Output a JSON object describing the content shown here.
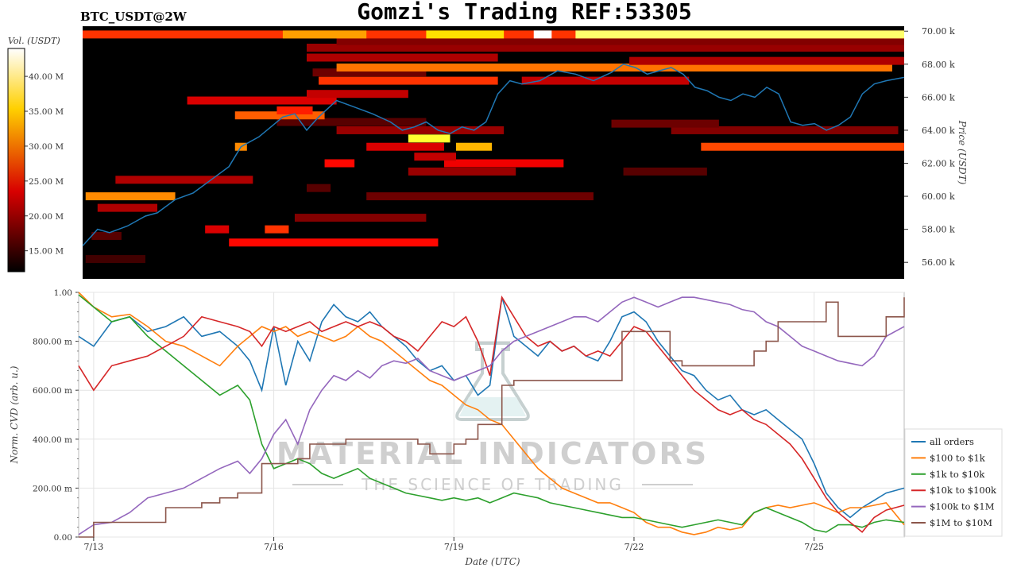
{
  "header": {
    "symbol": "BTC_USDT@2W",
    "title": "Gomzi's Trading REF:53305"
  },
  "watermark": {
    "line1": "MATERIAL INDICATORS",
    "line2": "THE SCIENCE OF TRADING"
  },
  "chart_data": [
    {
      "type": "heatmap",
      "title": "",
      "colorbar": {
        "label": "Vol. (USDT)",
        "range": [
          12000000,
          44000000
        ],
        "ticks": [
          "15.00 M",
          "20.00 M",
          "25.00 M",
          "30.00 M",
          "35.00 M",
          "40.00 M"
        ],
        "tick_values": [
          15000000,
          20000000,
          25000000,
          30000000,
          35000000,
          40000000
        ],
        "colormap": "hot"
      },
      "ylabel": "Price (USDT)",
      "ylim": [
        55000,
        70300
      ],
      "y_ticks": [
        "56.00 k",
        "58.00 k",
        "60.00 k",
        "62.00 k",
        "64.00 k",
        "66.00 k",
        "68.00 k",
        "70.00 k"
      ],
      "y_tick_values": [
        56000,
        58000,
        60000,
        62000,
        64000,
        66000,
        68000,
        70000
      ],
      "xlim": [
        12.75,
        26.5
      ],
      "volume_bands": [
        {
          "price": 56200,
          "x0": 12.8,
          "x1": 13.8,
          "vol": 15000000
        },
        {
          "price": 57600,
          "x0": 12.9,
          "x1": 13.4,
          "vol": 16000000
        },
        {
          "price": 57200,
          "x0": 15.2,
          "x1": 18.7,
          "vol": 24000000
        },
        {
          "price": 58000,
          "x0": 14.8,
          "x1": 15.2,
          "vol": 22000000
        },
        {
          "price": 58000,
          "x0": 15.8,
          "x1": 16.2,
          "vol": 26000000
        },
        {
          "price": 58700,
          "x0": 16.3,
          "x1": 18.5,
          "vol": 18000000
        },
        {
          "price": 59300,
          "x0": 13.0,
          "x1": 14.0,
          "vol": 20000000
        },
        {
          "price": 60000,
          "x0": 12.8,
          "x1": 14.3,
          "vol": 30000000
        },
        {
          "price": 60000,
          "x0": 17.5,
          "x1": 21.3,
          "vol": 17000000
        },
        {
          "price": 60500,
          "x0": 16.5,
          "x1": 16.9,
          "vol": 16000000
        },
        {
          "price": 61000,
          "x0": 13.3,
          "x1": 15.6,
          "vol": 20000000
        },
        {
          "price": 61500,
          "x0": 18.2,
          "x1": 20.0,
          "vol": 19000000
        },
        {
          "price": 61500,
          "x0": 21.8,
          "x1": 23.2,
          "vol": 16000000
        },
        {
          "price": 62000,
          "x0": 16.8,
          "x1": 17.3,
          "vol": 24000000
        },
        {
          "price": 62000,
          "x0": 18.8,
          "x1": 20.8,
          "vol": 23000000
        },
        {
          "price": 62400,
          "x0": 18.3,
          "x1": 19.0,
          "vol": 21000000
        },
        {
          "price": 63000,
          "x0": 15.3,
          "x1": 15.5,
          "vol": 30000000
        },
        {
          "price": 63000,
          "x0": 19.0,
          "x1": 19.6,
          "vol": 32000000
        },
        {
          "price": 63000,
          "x0": 17.5,
          "x1": 18.8,
          "vol": 22000000
        },
        {
          "price": 63000,
          "x0": 23.1,
          "x1": 26.5,
          "vol": 27000000
        },
        {
          "price": 63500,
          "x0": 18.2,
          "x1": 18.9,
          "vol": 37000000
        },
        {
          "price": 64000,
          "x0": 17.0,
          "x1": 19.8,
          "vol": 19000000
        },
        {
          "price": 64000,
          "x0": 22.6,
          "x1": 26.4,
          "vol": 18000000
        },
        {
          "price": 64400,
          "x0": 21.6,
          "x1": 23.4,
          "vol": 17000000
        },
        {
          "price": 64500,
          "x0": 16.0,
          "x1": 18.5,
          "vol": 16000000
        },
        {
          "price": 64900,
          "x0": 15.3,
          "x1": 16.8,
          "vol": 28000000
        },
        {
          "price": 65200,
          "x0": 16.0,
          "x1": 16.6,
          "vol": 25000000
        },
        {
          "price": 65800,
          "x0": 14.5,
          "x1": 17.0,
          "vol": 22000000
        },
        {
          "price": 66200,
          "x0": 16.5,
          "x1": 18.2,
          "vol": 21000000
        },
        {
          "price": 67000,
          "x0": 16.7,
          "x1": 19.7,
          "vol": 26000000
        },
        {
          "price": 67000,
          "x0": 20.1,
          "x1": 22.9,
          "vol": 21000000
        },
        {
          "price": 67500,
          "x0": 16.6,
          "x1": 18.5,
          "vol": 17000000
        },
        {
          "price": 67800,
          "x0": 17.0,
          "x1": 26.3,
          "vol": 29000000
        },
        {
          "price": 68200,
          "x0": 21.9,
          "x1": 26.5,
          "vol": 20000000
        },
        {
          "price": 68400,
          "x0": 16.5,
          "x1": 19.7,
          "vol": 20000000
        },
        {
          "price": 69000,
          "x0": 16.5,
          "x1": 26.5,
          "vol": 19000000
        },
        {
          "price": 69400,
          "x0": 17.0,
          "x1": 26.5,
          "vol": 18000000
        },
        {
          "price": 69800,
          "x0": 12.75,
          "x1": 26.5,
          "vol": 26000000
        },
        {
          "price": 69800,
          "x0": 16.1,
          "x1": 17.5,
          "vol": 31000000
        },
        {
          "price": 69800,
          "x0": 18.5,
          "x1": 19.8,
          "vol": 34000000
        },
        {
          "price": 69800,
          "x0": 20.3,
          "x1": 20.6,
          "vol": 44000000
        },
        {
          "price": 69800,
          "x0": 21.0,
          "x1": 26.5,
          "vol": 39000000
        }
      ],
      "price_series": {
        "name": "",
        "color": "#1f77b4",
        "x": [
          12.75,
          12.9,
          13.0,
          13.2,
          13.5,
          13.8,
          14.0,
          14.3,
          14.6,
          14.9,
          15.2,
          15.4,
          15.7,
          15.9,
          16.1,
          16.3,
          16.5,
          16.7,
          17.0,
          17.3,
          17.6,
          17.9,
          18.1,
          18.3,
          18.5,
          18.7,
          18.9,
          19.1,
          19.3,
          19.5,
          19.7,
          19.9,
          20.1,
          20.4,
          20.7,
          21.0,
          21.3,
          21.6,
          21.8,
          22.0,
          22.2,
          22.4,
          22.6,
          22.8,
          23.0,
          23.2,
          23.4,
          23.6,
          23.8,
          24.0,
          24.2,
          24.4,
          24.6,
          24.8,
          25.0,
          25.2,
          25.4,
          25.6,
          25.8,
          26.0,
          26.2,
          26.5
        ],
        "values": [
          57000,
          57600,
          58000,
          57800,
          58200,
          58800,
          59000,
          59800,
          60200,
          61000,
          61800,
          63000,
          63600,
          64200,
          64800,
          65000,
          64000,
          64800,
          65800,
          65400,
          65000,
          64500,
          64000,
          64200,
          64500,
          64000,
          63800,
          64200,
          64000,
          64500,
          66200,
          67000,
          66800,
          67000,
          67600,
          67400,
          67000,
          67500,
          68000,
          67800,
          67400,
          67600,
          67800,
          67400,
          66600,
          66400,
          66000,
          65800,
          66200,
          66000,
          66600,
          66200,
          64500,
          64300,
          64400,
          64000,
          64300,
          64800,
          66200,
          66800,
          67000,
          67200
        ]
      }
    },
    {
      "type": "line",
      "title": "",
      "xlabel": "Date (UTC)",
      "ylabel": "Norm. CVD (arb. u.)",
      "ylim": [
        0,
        1
      ],
      "y_ticks": [
        "0.00",
        "200.00 m",
        "400.00 m",
        "600.00 m",
        "800.00 m",
        "1.00"
      ],
      "y_tick_values": [
        0,
        0.2,
        0.4,
        0.6,
        0.8,
        1.0
      ],
      "xlim": [
        12.75,
        26.5
      ],
      "x_ticks": [
        "7/13",
        "7/16",
        "7/19",
        "7/22",
        "7/25"
      ],
      "x_tick_values": [
        13,
        16,
        19,
        22,
        25
      ],
      "grid": true,
      "legend_position": "bottom-right",
      "x": [
        12.75,
        13.0,
        13.3,
        13.6,
        13.9,
        14.2,
        14.5,
        14.8,
        15.1,
        15.4,
        15.6,
        15.8,
        16.0,
        16.2,
        16.4,
        16.6,
        16.8,
        17.0,
        17.2,
        17.4,
        17.6,
        17.8,
        18.0,
        18.2,
        18.4,
        18.6,
        18.8,
        19.0,
        19.2,
        19.4,
        19.6,
        19.8,
        20.0,
        20.2,
        20.4,
        20.6,
        20.8,
        21.0,
        21.2,
        21.4,
        21.6,
        21.8,
        22.0,
        22.2,
        22.4,
        22.6,
        22.8,
        23.0,
        23.2,
        23.4,
        23.6,
        23.8,
        24.0,
        24.2,
        24.4,
        24.6,
        24.8,
        25.0,
        25.2,
        25.4,
        25.6,
        25.8,
        26.0,
        26.2,
        26.5
      ],
      "series": [
        {
          "name": "all orders",
          "color": "#1f77b4",
          "values": [
            0.82,
            0.78,
            0.88,
            0.9,
            0.84,
            0.86,
            0.9,
            0.82,
            0.84,
            0.78,
            0.72,
            0.6,
            0.86,
            0.62,
            0.8,
            0.72,
            0.88,
            0.95,
            0.9,
            0.88,
            0.92,
            0.86,
            0.82,
            0.78,
            0.72,
            0.68,
            0.7,
            0.64,
            0.66,
            0.58,
            0.62,
            0.98,
            0.82,
            0.78,
            0.74,
            0.8,
            0.76,
            0.78,
            0.74,
            0.72,
            0.8,
            0.9,
            0.92,
            0.88,
            0.8,
            0.74,
            0.68,
            0.66,
            0.6,
            0.56,
            0.58,
            0.52,
            0.5,
            0.52,
            0.48,
            0.44,
            0.4,
            0.3,
            0.18,
            0.12,
            0.08,
            0.12,
            0.15,
            0.18,
            0.2
          ]
        },
        {
          "name": "$100 to $1k",
          "color": "#ff7f0e",
          "values": [
            1.0,
            0.94,
            0.9,
            0.91,
            0.86,
            0.8,
            0.78,
            0.74,
            0.7,
            0.78,
            0.82,
            0.86,
            0.84,
            0.86,
            0.82,
            0.84,
            0.82,
            0.8,
            0.82,
            0.86,
            0.82,
            0.8,
            0.76,
            0.72,
            0.68,
            0.64,
            0.62,
            0.58,
            0.54,
            0.52,
            0.48,
            0.46,
            0.4,
            0.34,
            0.28,
            0.24,
            0.2,
            0.18,
            0.16,
            0.14,
            0.14,
            0.12,
            0.1,
            0.06,
            0.04,
            0.04,
            0.02,
            0.01,
            0.02,
            0.04,
            0.03,
            0.04,
            0.1,
            0.12,
            0.13,
            0.12,
            0.13,
            0.14,
            0.12,
            0.1,
            0.12,
            0.12,
            0.13,
            0.14,
            0.05
          ]
        },
        {
          "name": "$1k to $10k",
          "color": "#2ca02c",
          "values": [
            0.99,
            0.94,
            0.88,
            0.9,
            0.82,
            0.76,
            0.7,
            0.64,
            0.58,
            0.62,
            0.56,
            0.38,
            0.28,
            0.3,
            0.32,
            0.3,
            0.26,
            0.24,
            0.26,
            0.28,
            0.24,
            0.22,
            0.2,
            0.18,
            0.17,
            0.16,
            0.15,
            0.16,
            0.15,
            0.16,
            0.14,
            0.16,
            0.18,
            0.17,
            0.16,
            0.14,
            0.13,
            0.12,
            0.11,
            0.1,
            0.09,
            0.08,
            0.08,
            0.07,
            0.06,
            0.05,
            0.04,
            0.05,
            0.06,
            0.07,
            0.06,
            0.05,
            0.1,
            0.12,
            0.1,
            0.08,
            0.06,
            0.03,
            0.02,
            0.05,
            0.05,
            0.04,
            0.06,
            0.07,
            0.06
          ]
        },
        {
          "name": "$10k to $100k",
          "color": "#d62728",
          "values": [
            0.7,
            0.6,
            0.7,
            0.72,
            0.74,
            0.78,
            0.82,
            0.9,
            0.88,
            0.86,
            0.84,
            0.78,
            0.86,
            0.84,
            0.86,
            0.88,
            0.84,
            0.86,
            0.88,
            0.86,
            0.88,
            0.86,
            0.82,
            0.8,
            0.76,
            0.82,
            0.88,
            0.86,
            0.9,
            0.8,
            0.66,
            0.98,
            0.9,
            0.82,
            0.78,
            0.8,
            0.76,
            0.78,
            0.74,
            0.76,
            0.74,
            0.8,
            0.86,
            0.84,
            0.78,
            0.72,
            0.66,
            0.6,
            0.56,
            0.52,
            0.5,
            0.52,
            0.48,
            0.46,
            0.42,
            0.38,
            0.32,
            0.24,
            0.16,
            0.1,
            0.06,
            0.02,
            0.08,
            0.11,
            0.13
          ]
        },
        {
          "name": "$100k to $1M",
          "color": "#9467bd",
          "values": [
            0.01,
            0.05,
            0.06,
            0.1,
            0.16,
            0.18,
            0.2,
            0.24,
            0.28,
            0.31,
            0.26,
            0.32,
            0.42,
            0.48,
            0.38,
            0.52,
            0.6,
            0.66,
            0.64,
            0.68,
            0.65,
            0.7,
            0.72,
            0.71,
            0.73,
            0.68,
            0.66,
            0.64,
            0.66,
            0.68,
            0.7,
            0.76,
            0.8,
            0.82,
            0.84,
            0.86,
            0.88,
            0.9,
            0.9,
            0.88,
            0.92,
            0.96,
            0.98,
            0.96,
            0.94,
            0.96,
            0.98,
            0.98,
            0.97,
            0.96,
            0.95,
            0.93,
            0.92,
            0.88,
            0.86,
            0.82,
            0.78,
            0.76,
            0.74,
            0.72,
            0.71,
            0.7,
            0.74,
            0.82,
            0.86
          ]
        },
        {
          "name": "$1M to $10M",
          "color": "#8c564b",
          "values": [
            0.0,
            0.06,
            0.06,
            0.06,
            0.06,
            0.12,
            0.12,
            0.14,
            0.16,
            0.18,
            0.18,
            0.3,
            0.3,
            0.3,
            0.32,
            0.38,
            0.38,
            0.38,
            0.4,
            0.4,
            0.4,
            0.4,
            0.4,
            0.4,
            0.38,
            0.34,
            0.34,
            0.38,
            0.4,
            0.46,
            0.46,
            0.62,
            0.64,
            0.64,
            0.64,
            0.64,
            0.64,
            0.64,
            0.64,
            0.64,
            0.64,
            0.84,
            0.84,
            0.84,
            0.84,
            0.72,
            0.7,
            0.7,
            0.7,
            0.7,
            0.7,
            0.7,
            0.76,
            0.8,
            0.88,
            0.88,
            0.88,
            0.88,
            0.96,
            0.82,
            0.82,
            0.82,
            0.82,
            0.9,
            0.98
          ]
        }
      ]
    }
  ]
}
